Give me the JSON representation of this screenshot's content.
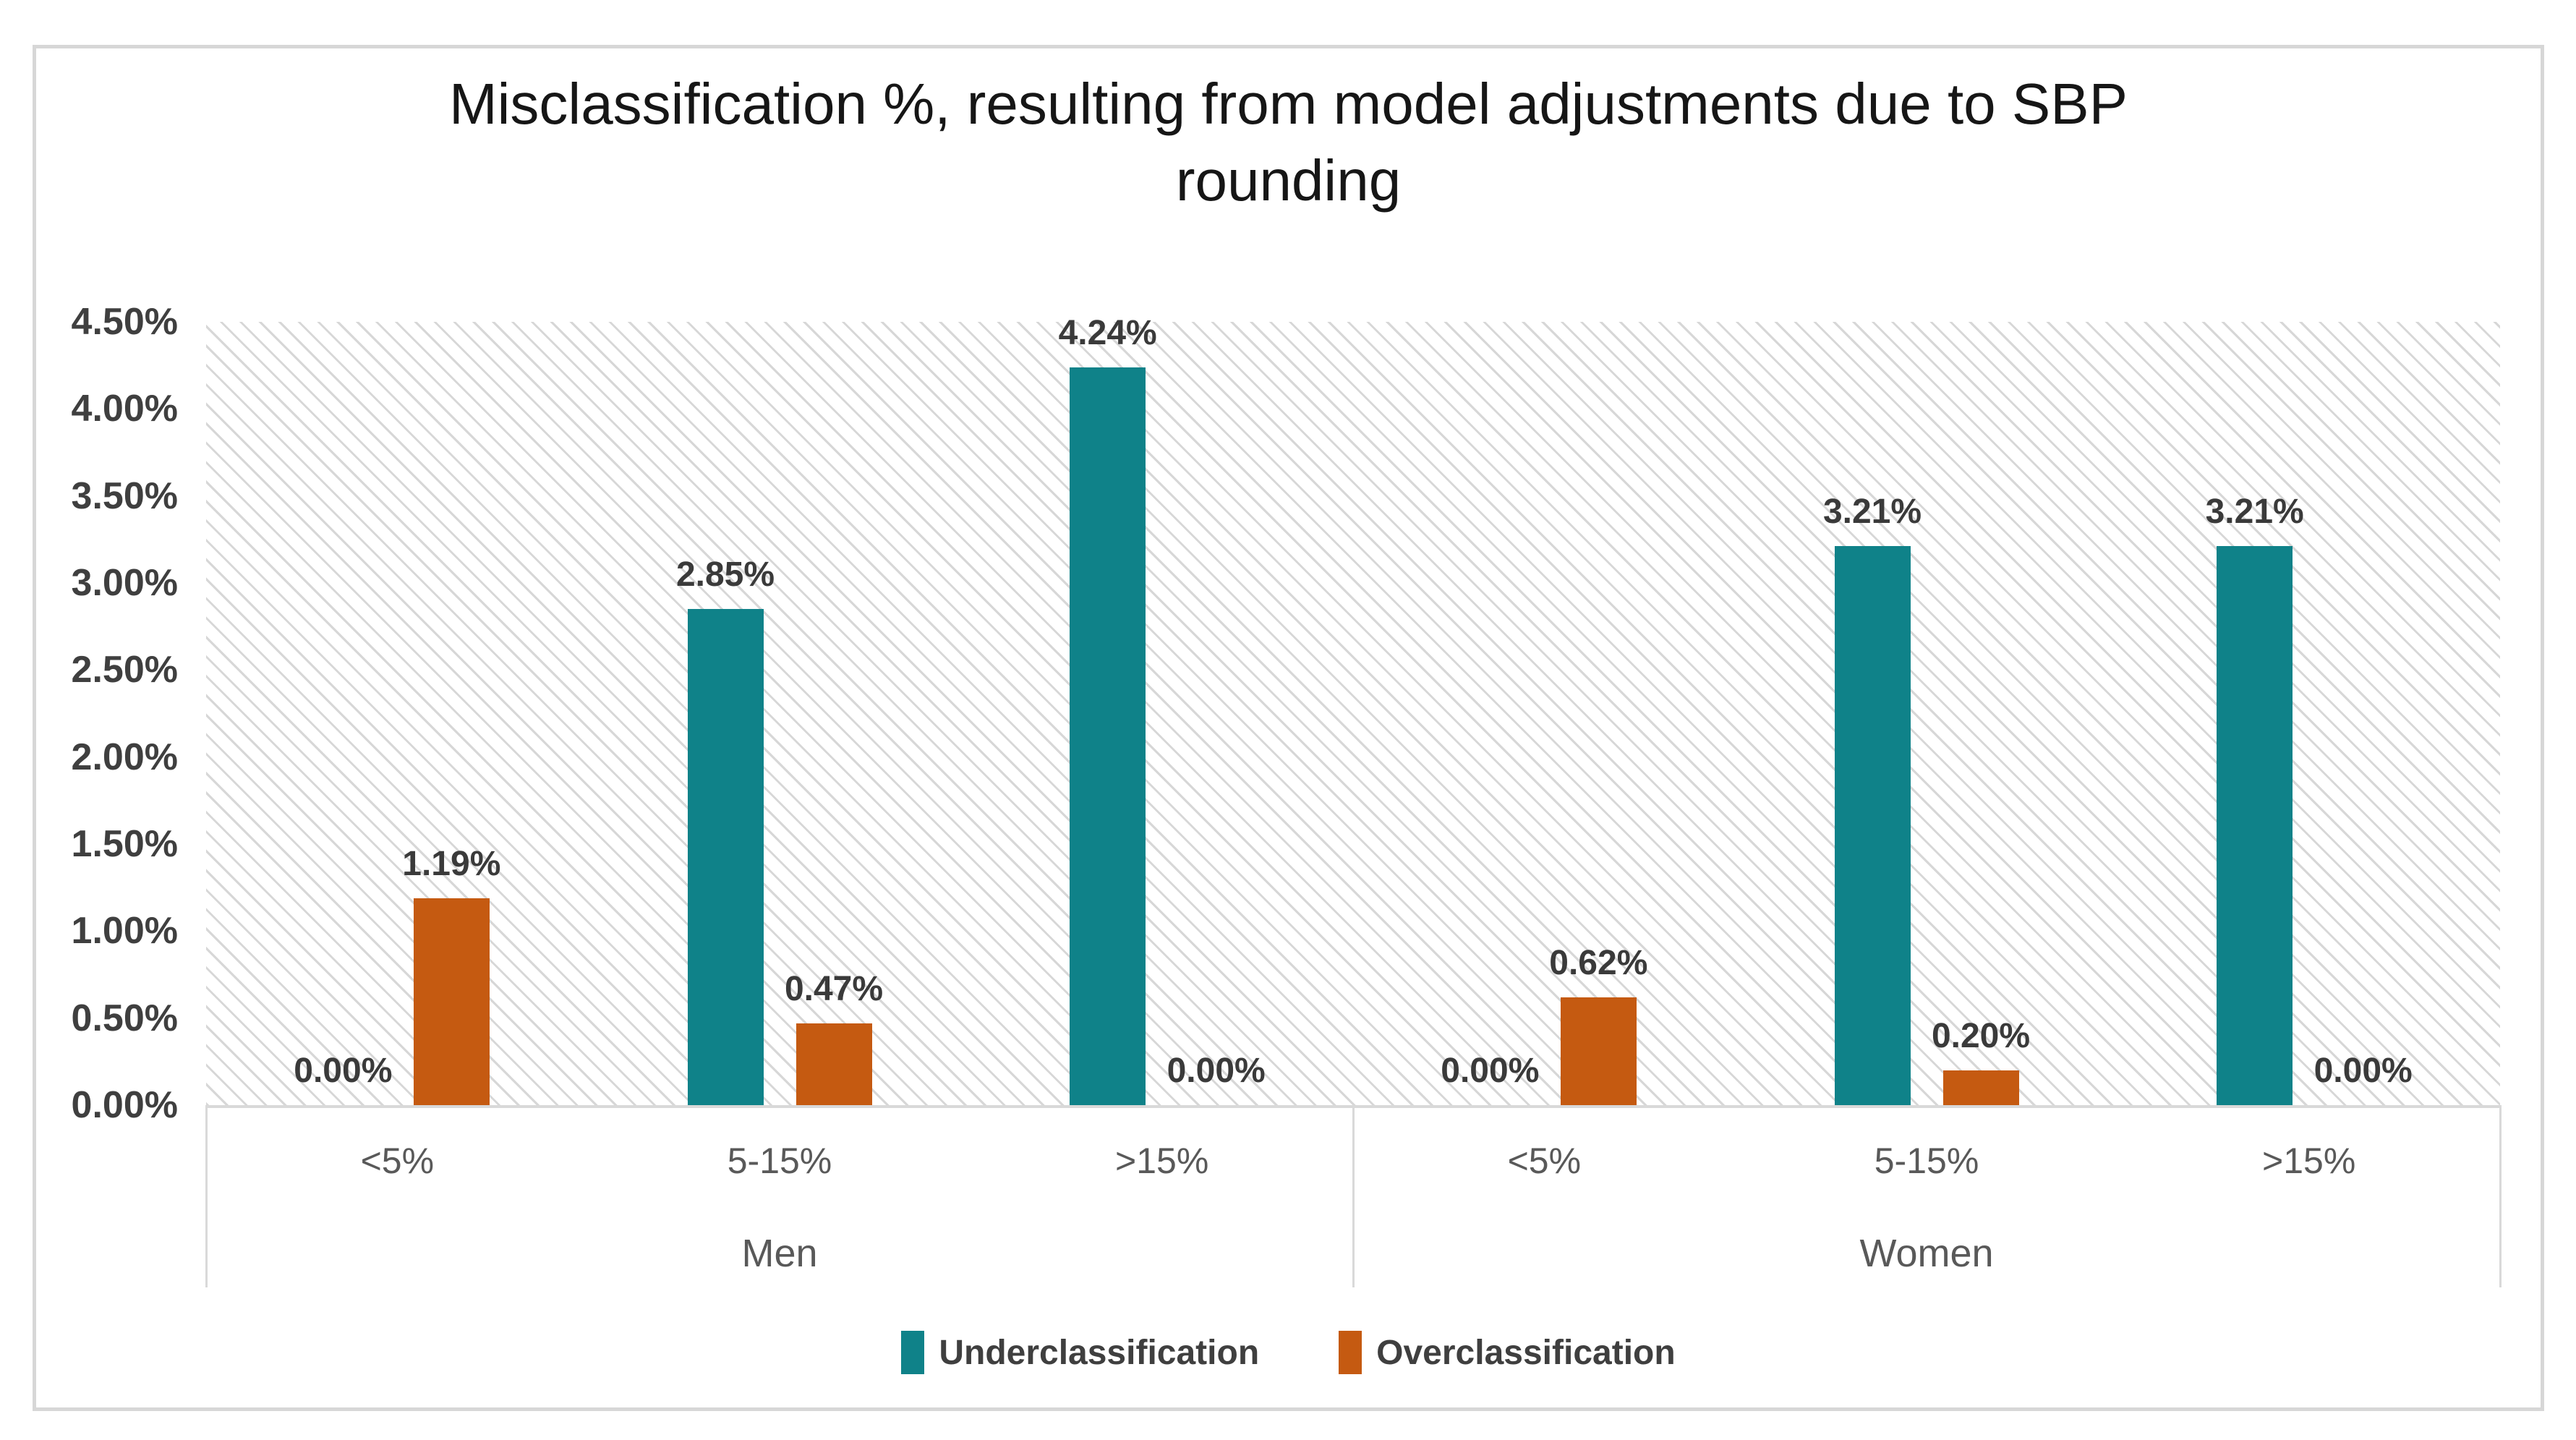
{
  "chart_data": {
    "type": "bar",
    "title": "Misclassification %, resulting from model adjustments due to SBP rounding",
    "groups": [
      "Men",
      "Women"
    ],
    "categories": [
      "<5%",
      "5-15%",
      ">15%"
    ],
    "series": [
      {
        "name": "Underclassification",
        "color": "#0F8289",
        "values": [
          0.0,
          2.85,
          4.24,
          0.0,
          3.21,
          3.21
        ],
        "labels": [
          "0.00%",
          "2.85%",
          "4.24%",
          "0.00%",
          "3.21%",
          "3.21%"
        ]
      },
      {
        "name": "Overclassification",
        "color": "#C55A11",
        "values": [
          1.19,
          0.47,
          0.0,
          0.62,
          0.2,
          0.0
        ],
        "labels": [
          "1.19%",
          "0.47%",
          "0.00%",
          "0.62%",
          "0.20%",
          "0.00%"
        ]
      }
    ],
    "y_axis": {
      "min": 0,
      "max": 4.5,
      "step": 0.5,
      "tick_labels": [
        "4.50%",
        "4.00%",
        "3.50%",
        "3.00%",
        "2.50%",
        "2.00%",
        "1.50%",
        "1.00%",
        "0.50%",
        "0.00%"
      ]
    },
    "legend_position": "bottom",
    "grid": false,
    "plot_background": "light-diagonal-hatch",
    "colors": {
      "underclassification": "#0F8289",
      "overclassification": "#C55A11",
      "axis_line": "#d9d9d9",
      "label_text": "#3f3f3f",
      "category_text": "#595959"
    }
  }
}
